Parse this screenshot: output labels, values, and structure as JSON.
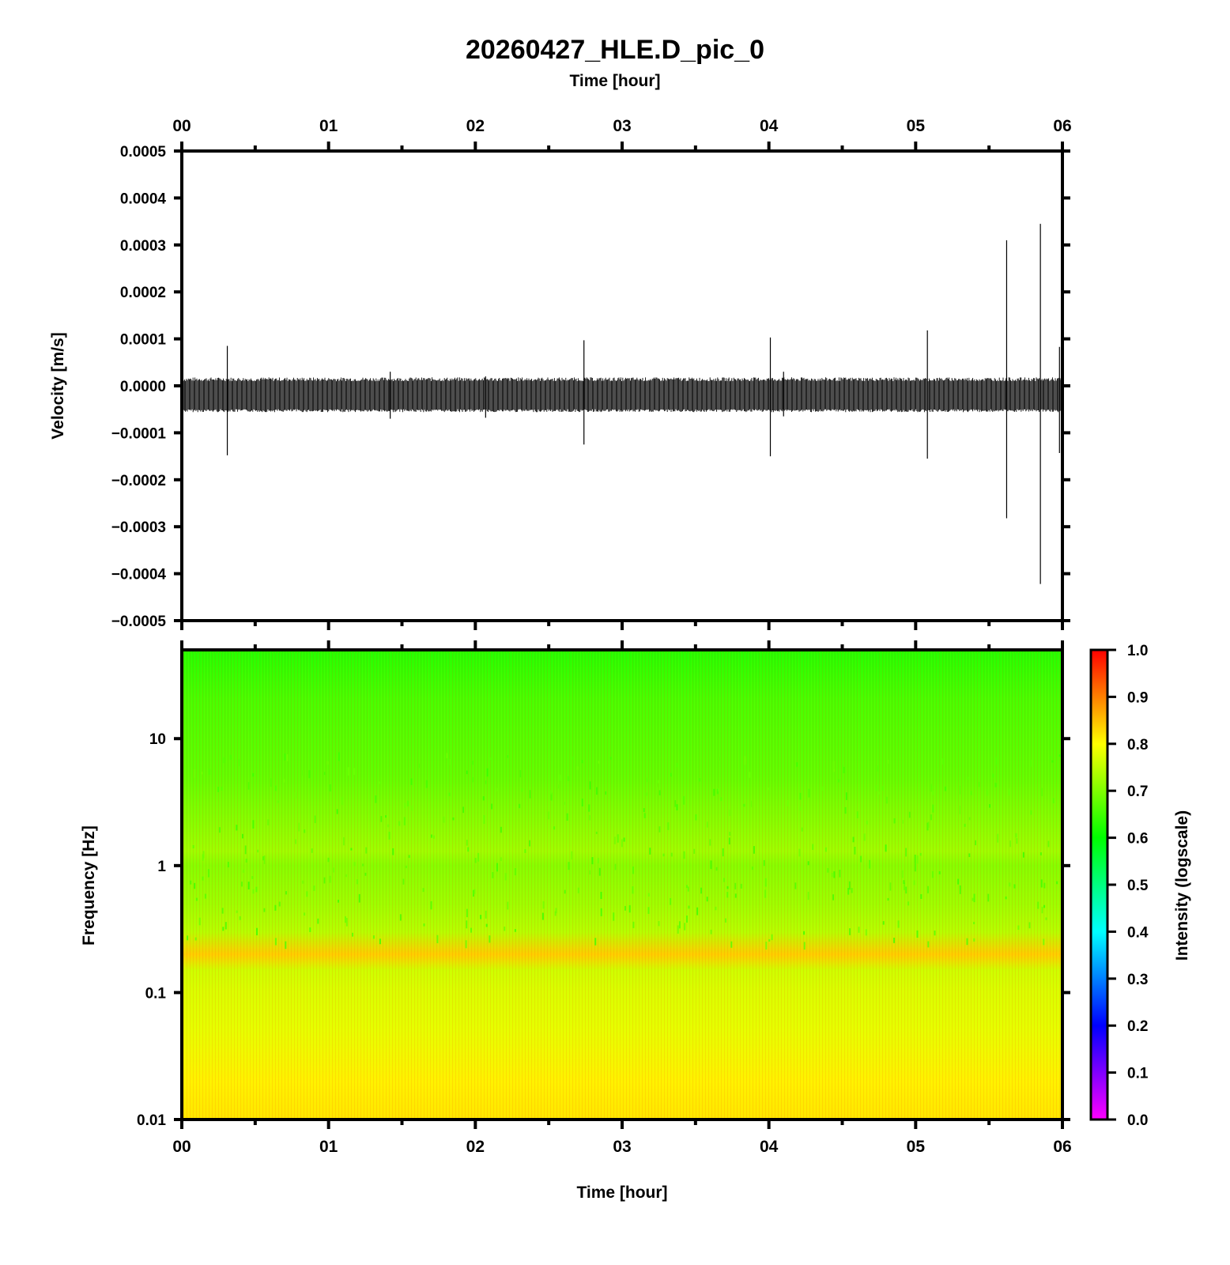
{
  "title": "20260427_HLE.D_pic_0",
  "chart_data": [
    {
      "type": "line",
      "x_axis_label_top": "Time [hour]",
      "ylabel": "Velocity [m/s]",
      "xlim": [
        0,
        6
      ],
      "ylim": [
        -0.0005,
        0.0005
      ],
      "x_ticks": [
        "00",
        "01",
        "02",
        "03",
        "04",
        "05",
        "06"
      ],
      "y_ticks": [
        "0.0005",
        "0.0004",
        "0.0003",
        "0.0002",
        "0.0001",
        "0.0000",
        "−0.0001",
        "−0.0002",
        "−0.0003",
        "−0.0004",
        "−0.0005"
      ],
      "y_tick_values": [
        0.0005,
        0.0004,
        0.0003,
        0.0002,
        0.0001,
        0.0,
        -0.0001,
        -0.0002,
        -0.0003,
        -0.0004,
        -0.0005
      ],
      "noise_band": [
        -5e-05,
        1e-05
      ],
      "spikes": [
        {
          "t": 0.31,
          "max": 8.5e-05,
          "min": -0.000148
        },
        {
          "t": 1.42,
          "max": 3e-05,
          "min": -7e-05
        },
        {
          "t": 2.07,
          "max": 2e-05,
          "min": -6.8e-05
        },
        {
          "t": 2.74,
          "max": 9.7e-05,
          "min": -0.000125
        },
        {
          "t": 4.01,
          "max": 0.000103,
          "min": -0.00015
        },
        {
          "t": 4.1,
          "max": 3e-05,
          "min": -6.5e-05
        },
        {
          "t": 5.08,
          "max": 0.000118,
          "min": -0.000155
        },
        {
          "t": 5.62,
          "max": 0.00031,
          "min": -0.000282
        },
        {
          "t": 5.85,
          "max": 0.000345,
          "min": -0.000422
        },
        {
          "t": 5.98,
          "max": 8.3e-05,
          "min": -0.000143
        }
      ],
      "line_color": "#000000"
    },
    {
      "type": "heatmap",
      "xlabel": "Time [hour]",
      "ylabel": "Frequency [Hz]",
      "xlim": [
        0,
        6
      ],
      "ylim": [
        0.01,
        50
      ],
      "y_scale": "log",
      "x_ticks": [
        "00",
        "01",
        "02",
        "03",
        "04",
        "05",
        "06"
      ],
      "y_ticks": [
        "10",
        "1",
        "0.1",
        "0.01"
      ],
      "y_tick_values": [
        10,
        1,
        0.1,
        0.01
      ],
      "intensity_profile": [
        {
          "f": 50,
          "v": 0.62
        },
        {
          "f": 20,
          "v": 0.65
        },
        {
          "f": 5,
          "v": 0.67
        },
        {
          "f": 1.3,
          "v": 0.72
        },
        {
          "f": 1.0,
          "v": 0.7
        },
        {
          "f": 0.5,
          "v": 0.72
        },
        {
          "f": 0.3,
          "v": 0.74
        },
        {
          "f": 0.2,
          "v": 0.84
        },
        {
          "f": 0.15,
          "v": 0.76
        },
        {
          "f": 0.1,
          "v": 0.77
        },
        {
          "f": 0.05,
          "v": 0.78
        },
        {
          "f": 0.02,
          "v": 0.81
        },
        {
          "f": 0.01,
          "v": 0.82
        }
      ],
      "colorbar": {
        "label": "Intensity (logscale)",
        "range": [
          0.0,
          1.0
        ],
        "ticks": [
          "1.0",
          "0.9",
          "0.8",
          "0.7",
          "0.6",
          "0.5",
          "0.4",
          "0.3",
          "0.2",
          "0.1",
          "0.0"
        ],
        "tick_values": [
          1.0,
          0.9,
          0.8,
          0.7,
          0.6,
          0.5,
          0.4,
          0.3,
          0.2,
          0.1,
          0.0
        ],
        "colors": [
          "#ff00ff",
          "#8000ff",
          "#0000ff",
          "#0080ff",
          "#00ffff",
          "#00ff80",
          "#00ff00",
          "#80ff00",
          "#ffff00",
          "#ff8000",
          "#ff0000"
        ]
      }
    }
  ]
}
